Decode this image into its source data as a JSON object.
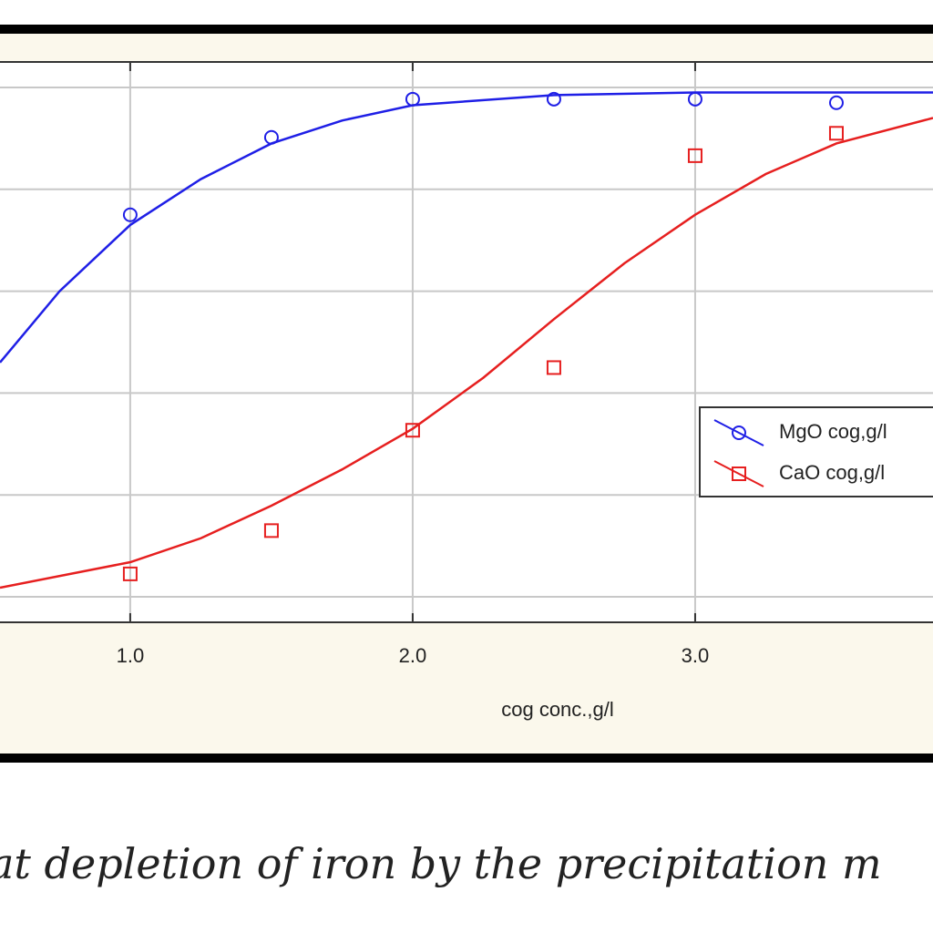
{
  "chart_data": {
    "type": "scatter",
    "xlabel": "cog conc.,g/l",
    "caption": "at depletion of iron by the precipitation m",
    "xlim": [
      0.539,
      3.842
    ],
    "ylim": [
      -5,
      105
    ],
    "xticks": [
      {
        "value": 1,
        "label": "1.0"
      },
      {
        "value": 2,
        "label": "2.0"
      },
      {
        "value": 3,
        "label": "3.0"
      }
    ],
    "ygrid": [
      0,
      20,
      40,
      60,
      80,
      100
    ],
    "grid": true,
    "legend": "right",
    "series": [
      {
        "name": "MgO cog,g/l",
        "color": "#1f1fe6",
        "marker": "circle",
        "x": [
          1.0,
          1.5,
          2.0,
          2.5,
          3.0,
          3.5
        ],
        "values": [
          75,
          90.2,
          97.7,
          97.7,
          97.7,
          97
        ],
        "fit": {
          "x": [
            0.539,
            0.75,
            1.0,
            1.25,
            1.5,
            1.75,
            2.0,
            2.5,
            3.0,
            3.5,
            3.842
          ],
          "values": [
            46,
            60,
            73,
            82,
            89,
            93.5,
            96.5,
            98.5,
            99,
            99,
            99
          ]
        }
      },
      {
        "name": "CaO cog,g/l",
        "color": "#e61f1f",
        "marker": "square",
        "x": [
          1.0,
          1.5,
          2.0,
          2.5,
          3.0,
          3.5
        ],
        "values": [
          4.5,
          13,
          32.7,
          45,
          86.6,
          91
        ],
        "fit": {
          "x": [
            0.539,
            1.0,
            1.25,
            1.5,
            1.75,
            2.0,
            2.25,
            2.5,
            2.75,
            3.0,
            3.25,
            3.5,
            3.842
          ],
          "values": [
            1.8,
            6.8,
            11.5,
            17.9,
            25,
            33,
            43,
            54.5,
            65.5,
            75,
            83,
            89,
            94
          ]
        }
      }
    ]
  }
}
